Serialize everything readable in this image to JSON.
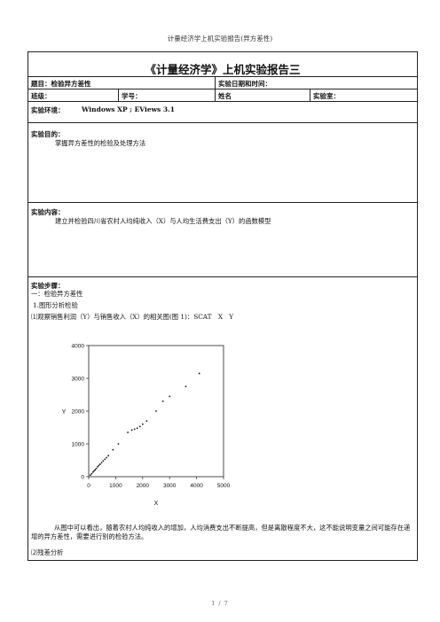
{
  "page_header": "计量经济学上机实验报告(异方差性)",
  "report_title": "《计量经济学》上机实验报告三",
  "topic_label": "题目：检验异方差性",
  "date_label": "实验日期和时间：",
  "class_label": "班级：",
  "student_id_label": "学号：",
  "name_label": "姓名",
  "lab_room_label": "实验室：",
  "environment_label": "实验环境：",
  "environment_value": "Windows XP ; EViews 3.1",
  "purpose_label": "实验目的：",
  "purpose_text": "掌握异方差性的检验及处理方法",
  "content_label": "实验内容：",
  "content_text": "建立并检验四川省农村人均纯收入（X）与人均生活费支出（Y）的函数模型",
  "steps_label": "实验步骤：",
  "steps": {
    "line1": "一：检验异方差性",
    "line2": "1.图形分析检验",
    "line3": "⑴观察销售利润（Y）与销售收入（X）的相关图(图 1)：SCAT　X　Y",
    "para": "从图中可以看出，随着农村人均纯收入的增加，人均消费支出不断提高，但是离散程度不大，这不能说明变量之间可能存在递增的异方差性，需要进行别的检验方法。",
    "line4": "⑵残差分析"
  },
  "page_footer": "1 / 7",
  "chart_data": {
    "type": "scatter",
    "xlabel": "X",
    "ylabel": "Y",
    "xlim": [
      0,
      5000
    ],
    "ylim": [
      0,
      4000
    ],
    "xticks": [
      0,
      1000,
      2000,
      3000,
      4000,
      5000
    ],
    "yticks": [
      0,
      1000,
      2000,
      3000,
      4000
    ],
    "points": [
      [
        60,
        50
      ],
      [
        110,
        90
      ],
      [
        160,
        140
      ],
      [
        200,
        180
      ],
      [
        240,
        210
      ],
      [
        280,
        250
      ],
      [
        330,
        300
      ],
      [
        370,
        340
      ],
      [
        420,
        380
      ],
      [
        480,
        430
      ],
      [
        540,
        480
      ],
      [
        600,
        530
      ],
      [
        660,
        580
      ],
      [
        730,
        640
      ],
      [
        900,
        820
      ],
      [
        1100,
        1000
      ],
      [
        1450,
        1350
      ],
      [
        1600,
        1420
      ],
      [
        1700,
        1450
      ],
      [
        1800,
        1480
      ],
      [
        1900,
        1530
      ],
      [
        2000,
        1600
      ],
      [
        2150,
        1700
      ],
      [
        2500,
        2000
      ],
      [
        2750,
        2300
      ],
      [
        3000,
        2450
      ],
      [
        3600,
        2750
      ],
      [
        4100,
        3150
      ]
    ]
  }
}
